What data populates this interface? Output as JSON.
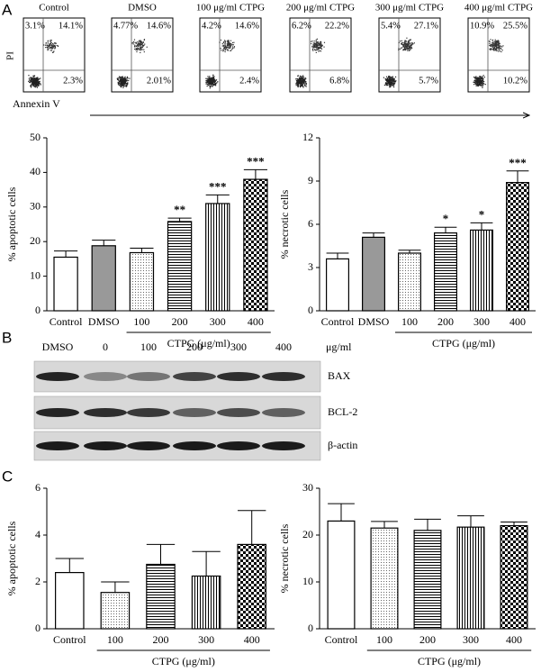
{
  "panels": [
    "A",
    "B",
    "C"
  ],
  "flow": {
    "y_label": "PI",
    "x_label": "Annexin V",
    "plots": [
      {
        "title": "Control",
        "upper_left": "3.1%",
        "upper_right": "14.1%",
        "lower_right": "2.3%"
      },
      {
        "title": "DMSO",
        "upper_left": "4.77%",
        "upper_right": "14.6%",
        "lower_right": "2.01%"
      },
      {
        "title": "100 μg/ml CTPG",
        "upper_left": "4.2%",
        "upper_right": "14.6%",
        "lower_right": "2.4%"
      },
      {
        "title": "200 μg/ml CTPG",
        "upper_left": "6.2%",
        "upper_right": "22.2%",
        "lower_right": "6.8%"
      },
      {
        "title": "300 μg/ml CTPG",
        "upper_left": "5.4%",
        "upper_right": "27.1%",
        "lower_right": "5.7%"
      },
      {
        "title": "400 μg/ml CTPG",
        "upper_left": "10.9%",
        "upper_right": "25.5%",
        "lower_right": "10.2%"
      }
    ]
  },
  "blot": {
    "lanes": [
      "DMSO",
      "0",
      "100",
      "200",
      "300",
      "400"
    ],
    "unit": "μg/ml",
    "bands": [
      "BAX",
      "BCL-2",
      "β-actin"
    ]
  },
  "chart_data": [
    {
      "type": "bar",
      "y_label": "% apoptotic cells",
      "group_label": "CTPG (μg/ml)",
      "categories": [
        "Control",
        "DMSO",
        "100",
        "200",
        "300",
        "400"
      ],
      "values": [
        15.5,
        18.8,
        16.8,
        25.8,
        31,
        38
      ],
      "errors": [
        1.8,
        1.6,
        1.3,
        1,
        2.5,
        2.8
      ],
      "significance": [
        null,
        null,
        null,
        "**",
        "***",
        "***"
      ],
      "fills": [
        "white",
        "gray",
        "dots",
        "hlines",
        "vlines",
        "checker"
      ],
      "ylim": [
        0,
        50
      ],
      "yticks": [
        0,
        10,
        20,
        30,
        40,
        50
      ]
    },
    {
      "type": "bar",
      "y_label": "% necrotic cells",
      "group_label": "CTPG (μg/ml)",
      "categories": [
        "Control",
        "DMSO",
        "100",
        "200",
        "300",
        "400"
      ],
      "values": [
        3.6,
        5.1,
        4.0,
        5.4,
        5.6,
        8.9
      ],
      "errors": [
        0.4,
        0.3,
        0.2,
        0.4,
        0.5,
        0.8
      ],
      "significance": [
        null,
        null,
        null,
        "*",
        "*",
        "***"
      ],
      "fills": [
        "white",
        "gray",
        "dots",
        "hlines",
        "vlines",
        "checker"
      ],
      "ylim": [
        0,
        12
      ],
      "yticks": [
        0,
        3,
        6,
        9,
        12
      ]
    },
    {
      "type": "bar",
      "y_label": "% apoptotic cells",
      "group_label": "CTPG (μg/ml)",
      "categories": [
        "Control",
        "100",
        "200",
        "300",
        "400"
      ],
      "values": [
        2.4,
        1.55,
        2.75,
        2.25,
        3.6
      ],
      "errors": [
        0.6,
        0.45,
        0.85,
        1.05,
        1.45
      ],
      "fills": [
        "white",
        "dots",
        "hlines",
        "vlines",
        "checker"
      ],
      "ylim": [
        0,
        6
      ],
      "yticks": [
        0,
        2,
        4,
        6
      ]
    },
    {
      "type": "bar",
      "y_label": "% necrotic cells",
      "group_label": "CTPG (μg/ml)",
      "categories": [
        "Control",
        "100",
        "200",
        "300",
        "400"
      ],
      "values": [
        23,
        21.5,
        21,
        21.7,
        22
      ],
      "errors": [
        3.7,
        1.4,
        2.4,
        2.4,
        0.8
      ],
      "fills": [
        "white",
        "dots",
        "hlines",
        "vlines",
        "checker"
      ],
      "ylim": [
        0,
        30
      ],
      "yticks": [
        0,
        10,
        20,
        30
      ]
    }
  ]
}
